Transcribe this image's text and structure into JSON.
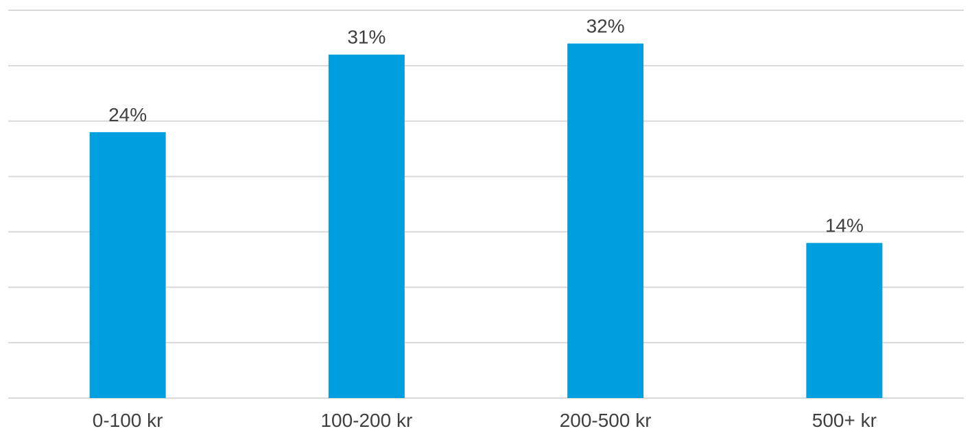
{
  "chart_data": {
    "type": "bar",
    "title": "",
    "xlabel": "",
    "ylabel": "",
    "categories": [
      "0-100 kr",
      "100-200 kr",
      "200-500 kr",
      "500+ kr"
    ],
    "values": [
      24,
      31,
      32,
      14
    ],
    "value_labels": [
      "24%",
      "31%",
      "32%",
      "14%"
    ],
    "ylim": [
      0,
      35
    ],
    "gridlines": [
      0,
      5,
      10,
      15,
      20,
      25,
      30,
      35
    ],
    "grid": true,
    "legend": "none",
    "bar_color": "#009FDF",
    "grid_color": "#D9D9D9",
    "text_color": "#404040"
  }
}
